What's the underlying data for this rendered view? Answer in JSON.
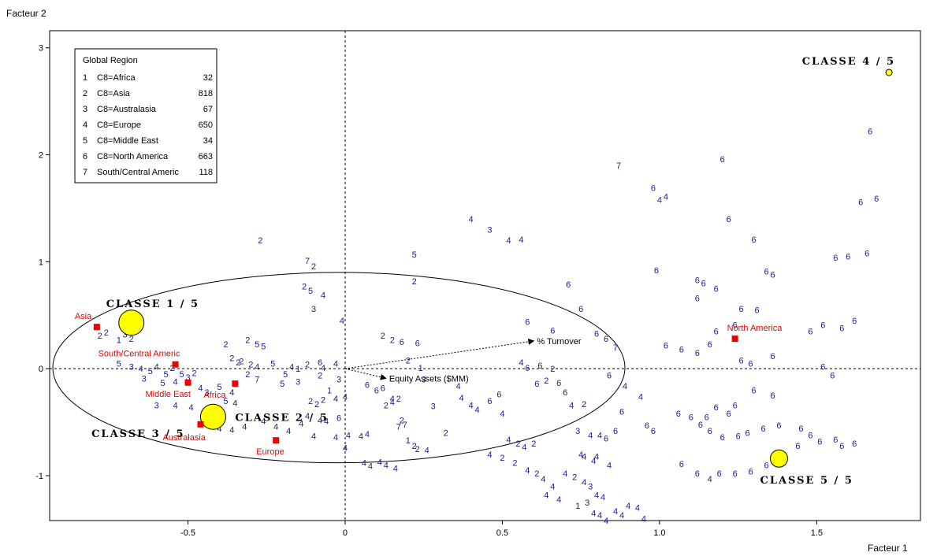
{
  "chart_data": {
    "type": "scatter",
    "xlabel": "Facteur 1",
    "ylabel": "Facteur 2",
    "xlim": [
      -0.94,
      1.83
    ],
    "ylim": [
      -1.42,
      3.16
    ],
    "xticks": [
      -0.5,
      0,
      0.5,
      1,
      1.5
    ],
    "xtick_labels": [
      "-0.5",
      "0",
      "0.5",
      "1.0",
      "1.5"
    ],
    "yticks": [
      -1,
      0,
      1,
      2,
      3
    ],
    "ytick_labels": [
      "-1",
      "0",
      "1",
      "2",
      "3"
    ],
    "reference_lines": {
      "x": 0,
      "y": 0,
      "style": "dotted"
    },
    "legend": {
      "title": "Global Region",
      "placement": "top-left",
      "entries": [
        {
          "code": "1",
          "label": "C8=Africa",
          "count": "32"
        },
        {
          "code": "2",
          "label": "C8=Asia",
          "count": "818"
        },
        {
          "code": "3",
          "label": "C8=Australasia",
          "count": "67"
        },
        {
          "code": "4",
          "label": "C8=Europe",
          "count": "650"
        },
        {
          "code": "5",
          "label": "C8=Middle East",
          "count": "34"
        },
        {
          "code": "6",
          "label": "C8=North America",
          "count": "663"
        },
        {
          "code": "7",
          "label": "South/Central Americ",
          "count": "118"
        }
      ]
    },
    "modality_points": [
      {
        "label": "Asia",
        "x": -0.79,
        "y": 0.39
      },
      {
        "label": "South/Central Americ",
        "x": -0.54,
        "y": 0.04
      },
      {
        "label": "Middle East",
        "x": -0.5,
        "y": -0.13
      },
      {
        "label": "Africa",
        "x": -0.35,
        "y": -0.14
      },
      {
        "label": "Australasia",
        "x": -0.46,
        "y": -0.52
      },
      {
        "label": "Europe",
        "x": -0.22,
        "y": -0.67
      },
      {
        "label": "North America",
        "x": 1.24,
        "y": 0.28
      }
    ],
    "class_centers": [
      {
        "label": "CLASSE  1 / 5",
        "x": -0.68,
        "y": 0.43,
        "size": "large"
      },
      {
        "label": "CLASSE  2 / 5",
        "x": -0.42,
        "y": -0.45,
        "size": "large"
      },
      {
        "label": "CLASSE  3 / 5",
        "x": -0.46,
        "y": -0.5,
        "size": "none"
      },
      {
        "label": "CLASSE  4 / 5",
        "x": 1.73,
        "y": 2.77,
        "size": "small"
      },
      {
        "label": "CLASSE  5 / 5",
        "x": 1.38,
        "y": -0.84,
        "size": "medium"
      }
    ],
    "variable_arrows": [
      {
        "label": "% Turnover",
        "x": 0.6,
        "y": 0.26
      },
      {
        "label": "Equity Assets ($MM)",
        "x": 0.13,
        "y": -0.09
      }
    ],
    "ellipse": {
      "cx": -0.02,
      "cy": 0.01,
      "rx": 0.91,
      "ry": 0.89
    },
    "points": [
      [
        -0.76,
        0.34,
        "2"
      ],
      [
        -0.7,
        0.32,
        "3"
      ],
      [
        -0.72,
        0.27,
        "1"
      ],
      [
        -0.78,
        0.31,
        "2"
      ],
      [
        -0.68,
        0.28,
        "2"
      ],
      [
        -0.72,
        0.05,
        "5"
      ],
      [
        -0.68,
        0.02,
        "3"
      ],
      [
        -0.65,
        0.0,
        "4"
      ],
      [
        -0.62,
        -0.02,
        "5"
      ],
      [
        -0.6,
        0.02,
        "4"
      ],
      [
        -0.57,
        -0.05,
        "5"
      ],
      [
        -0.55,
        0.01,
        "2"
      ],
      [
        -0.52,
        -0.05,
        "5"
      ],
      [
        -0.48,
        -0.04,
        "2"
      ],
      [
        -0.64,
        -0.09,
        "3"
      ],
      [
        -0.58,
        -0.13,
        "5"
      ],
      [
        -0.54,
        -0.12,
        "4"
      ],
      [
        -0.5,
        -0.08,
        "3"
      ],
      [
        -0.46,
        -0.18,
        "4"
      ],
      [
        -0.44,
        -0.22,
        "3"
      ],
      [
        -0.4,
        -0.17,
        "5"
      ],
      [
        -0.36,
        -0.22,
        "4"
      ],
      [
        -0.6,
        -0.34,
        "3"
      ],
      [
        -0.54,
        -0.34,
        "4"
      ],
      [
        -0.49,
        -0.36,
        "4"
      ],
      [
        -0.38,
        -0.3,
        "5"
      ],
      [
        -0.35,
        -0.32,
        "4"
      ],
      [
        -0.32,
        -0.54,
        "4"
      ],
      [
        -0.36,
        -0.57,
        "4"
      ],
      [
        -0.4,
        -0.56,
        "4"
      ],
      [
        -0.36,
        0.1,
        "2"
      ],
      [
        -0.33,
        0.07,
        "2"
      ],
      [
        -0.3,
        0.04,
        "2"
      ],
      [
        -0.28,
        0.02,
        "4"
      ],
      [
        -0.31,
        -0.05,
        "2"
      ],
      [
        -0.28,
        -0.1,
        "7"
      ],
      [
        -0.31,
        0.27,
        "2"
      ],
      [
        -0.28,
        0.23,
        "5"
      ],
      [
        -0.26,
        0.21,
        "5"
      ],
      [
        -0.23,
        0.05,
        "5"
      ],
      [
        -0.19,
        -0.05,
        "5"
      ],
      [
        -0.2,
        -0.14,
        "5"
      ],
      [
        -0.17,
        0.02,
        "4"
      ],
      [
        -0.15,
        0.0,
        "1"
      ],
      [
        -0.12,
        0.04,
        "2"
      ],
      [
        -0.08,
        0.06,
        "6"
      ],
      [
        -0.03,
        0.05,
        "4"
      ],
      [
        -0.07,
        0.01,
        "4"
      ],
      [
        -0.08,
        -0.06,
        "2"
      ],
      [
        -0.15,
        -0.12,
        "3"
      ],
      [
        -0.11,
        -0.3,
        "2"
      ],
      [
        -0.09,
        -0.33,
        "2"
      ],
      [
        -0.07,
        -0.29,
        "2"
      ],
      [
        -0.05,
        -0.2,
        "1"
      ],
      [
        -0.03,
        -0.28,
        "4"
      ],
      [
        0.0,
        -0.26,
        "4"
      ],
      [
        -0.12,
        -0.44,
        "4"
      ],
      [
        -0.08,
        -0.48,
        "4"
      ],
      [
        -0.06,
        -0.49,
        "4"
      ],
      [
        -0.02,
        -0.46,
        "6"
      ],
      [
        -0.26,
        -0.49,
        "4"
      ],
      [
        -0.22,
        -0.54,
        "4"
      ],
      [
        -0.18,
        -0.58,
        "4"
      ],
      [
        -0.14,
        -0.51,
        "4"
      ],
      [
        -0.1,
        -0.63,
        "4"
      ],
      [
        -0.03,
        -0.64,
        "4"
      ],
      [
        0.01,
        -0.62,
        "4"
      ],
      [
        0.05,
        -0.63,
        "4"
      ],
      [
        0.0,
        -0.74,
        "4"
      ],
      [
        0.07,
        -0.61,
        "4"
      ],
      [
        -0.02,
        -0.1,
        "3"
      ],
      [
        0.07,
        -0.15,
        "6"
      ],
      [
        0.1,
        -0.2,
        "6"
      ],
      [
        0.12,
        -0.18,
        "6"
      ],
      [
        0.15,
        -0.28,
        "4"
      ],
      [
        0.13,
        -0.34,
        "2"
      ],
      [
        0.15,
        -0.31,
        "4"
      ],
      [
        0.17,
        -0.28,
        "2"
      ],
      [
        0.18,
        -0.48,
        "2"
      ],
      [
        0.19,
        -0.52,
        "7"
      ],
      [
        0.17,
        -0.54,
        "7"
      ],
      [
        0.2,
        -0.67,
        "1"
      ],
      [
        0.22,
        -0.72,
        "2"
      ],
      [
        0.23,
        -0.75,
        "2"
      ],
      [
        0.26,
        -0.76,
        "4"
      ],
      [
        0.06,
        -0.88,
        "4"
      ],
      [
        0.08,
        -0.91,
        "4"
      ],
      [
        0.11,
        -0.87,
        "4"
      ],
      [
        0.13,
        -0.9,
        "4"
      ],
      [
        0.16,
        -0.93,
        "4"
      ],
      [
        0.12,
        0.31,
        "2"
      ],
      [
        0.15,
        0.27,
        "2"
      ],
      [
        0.18,
        0.25,
        "6"
      ],
      [
        0.23,
        0.24,
        "6"
      ],
      [
        0.2,
        0.08,
        "2"
      ],
      [
        0.24,
        0.01,
        "1"
      ],
      [
        0.25,
        -0.1,
        "3"
      ],
      [
        0.28,
        -0.35,
        "3"
      ],
      [
        0.32,
        -0.6,
        "2"
      ],
      [
        0.36,
        -0.16,
        "4"
      ],
      [
        0.37,
        -0.27,
        "4"
      ],
      [
        0.4,
        -0.34,
        "4"
      ],
      [
        0.42,
        -0.38,
        "4"
      ],
      [
        0.46,
        -0.3,
        "6"
      ],
      [
        0.49,
        -0.24,
        "6"
      ],
      [
        0.5,
        -0.42,
        "4"
      ],
      [
        0.52,
        -0.66,
        "4"
      ],
      [
        0.55,
        -0.7,
        "2"
      ],
      [
        0.57,
        -0.73,
        "4"
      ],
      [
        0.6,
        -0.7,
        "2"
      ],
      [
        0.56,
        0.06,
        "4"
      ],
      [
        0.58,
        0.01,
        "6"
      ],
      [
        0.62,
        0.03,
        "6"
      ],
      [
        0.66,
        0.0,
        "2"
      ],
      [
        0.61,
        -0.14,
        "6"
      ],
      [
        0.64,
        -0.11,
        "2"
      ],
      [
        0.68,
        -0.13,
        "6"
      ],
      [
        0.7,
        -0.22,
        "6"
      ],
      [
        0.72,
        -0.34,
        "4"
      ],
      [
        0.76,
        -0.33,
        "2"
      ],
      [
        0.74,
        -0.58,
        "3"
      ],
      [
        0.78,
        -0.62,
        "4"
      ],
      [
        0.81,
        -0.62,
        "4"
      ],
      [
        0.83,
        -0.65,
        "6"
      ],
      [
        0.86,
        -0.58,
        "6"
      ],
      [
        0.75,
        -0.8,
        "4"
      ],
      [
        0.76,
        -0.82,
        "4"
      ],
      [
        0.79,
        -0.86,
        "4"
      ],
      [
        0.8,
        -0.82,
        "4"
      ],
      [
        0.84,
        -0.9,
        "4"
      ],
      [
        0.73,
        -1.01,
        "2"
      ],
      [
        0.76,
        -1.06,
        "4"
      ],
      [
        0.78,
        -1.1,
        "3"
      ],
      [
        0.8,
        -1.18,
        "4"
      ],
      [
        0.82,
        -1.2,
        "4"
      ],
      [
        0.79,
        -1.35,
        "4"
      ],
      [
        0.81,
        -1.37,
        "4"
      ],
      [
        0.83,
        -1.42,
        "4"
      ],
      [
        0.86,
        -1.33,
        "4"
      ],
      [
        0.88,
        -1.37,
        "4"
      ],
      [
        0.9,
        -1.28,
        "4"
      ],
      [
        0.93,
        -1.3,
        "4"
      ],
      [
        0.95,
        -1.4,
        "4"
      ],
      [
        0.74,
        -1.28,
        "1"
      ],
      [
        0.77,
        -1.25,
        "3"
      ],
      [
        0.46,
        -0.8,
        "4"
      ],
      [
        0.5,
        -0.83,
        "2"
      ],
      [
        0.54,
        -0.88,
        "2"
      ],
      [
        0.58,
        -0.95,
        "4"
      ],
      [
        0.61,
        -0.98,
        "2"
      ],
      [
        0.63,
        -1.03,
        "4"
      ],
      [
        0.66,
        -1.1,
        "4"
      ],
      [
        0.7,
        -0.98,
        "4"
      ],
      [
        0.64,
        -1.18,
        "4"
      ],
      [
        0.68,
        -1.22,
        "4"
      ],
      [
        0.75,
        0.56,
        "6"
      ],
      [
        0.8,
        0.33,
        "6"
      ],
      [
        0.83,
        0.28,
        "6"
      ],
      [
        0.86,
        0.2,
        "7"
      ],
      [
        0.84,
        -0.06,
        "6"
      ],
      [
        0.89,
        -0.16,
        "4"
      ],
      [
        0.94,
        -0.26,
        "4"
      ],
      [
        0.88,
        -0.4,
        "6"
      ],
      [
        0.96,
        -0.53,
        "6"
      ],
      [
        0.98,
        -0.58,
        "6"
      ],
      [
        0.66,
        0.36,
        "6"
      ],
      [
        0.58,
        0.44,
        "6"
      ],
      [
        0.71,
        0.79,
        "6"
      ],
      [
        0.4,
        1.4,
        "4"
      ],
      [
        0.46,
        1.3,
        "3"
      ],
      [
        0.52,
        1.2,
        "4"
      ],
      [
        0.56,
        1.21,
        "4"
      ],
      [
        0.87,
        1.9,
        "7"
      ],
      [
        0.98,
        1.69,
        "6"
      ],
      [
        1.02,
        1.61,
        "4"
      ],
      [
        1.0,
        1.58,
        "4"
      ],
      [
        0.99,
        0.92,
        "6"
      ],
      [
        1.2,
        1.96,
        "6"
      ],
      [
        1.22,
        1.4,
        "6"
      ],
      [
        1.3,
        1.21,
        "6"
      ],
      [
        1.34,
        0.91,
        "6"
      ],
      [
        1.36,
        0.88,
        "6"
      ],
      [
        1.12,
        0.83,
        "6"
      ],
      [
        1.14,
        0.8,
        "6"
      ],
      [
        1.18,
        0.75,
        "6"
      ],
      [
        1.12,
        0.66,
        "6"
      ],
      [
        1.26,
        0.56,
        "6"
      ],
      [
        1.31,
        0.55,
        "6"
      ],
      [
        1.18,
        0.35,
        "6"
      ],
      [
        1.24,
        0.41,
        "6"
      ],
      [
        1.02,
        0.22,
        "6"
      ],
      [
        1.07,
        0.18,
        "6"
      ],
      [
        1.12,
        0.15,
        "6"
      ],
      [
        1.16,
        0.23,
        "6"
      ],
      [
        1.26,
        0.08,
        "6"
      ],
      [
        1.29,
        0.05,
        "6"
      ],
      [
        1.36,
        0.12,
        "6"
      ],
      [
        1.3,
        -0.2,
        "6"
      ],
      [
        1.36,
        -0.25,
        "6"
      ],
      [
        1.24,
        -0.34,
        "6"
      ],
      [
        1.18,
        -0.36,
        "6"
      ],
      [
        1.06,
        -0.42,
        "6"
      ],
      [
        1.1,
        -0.45,
        "6"
      ],
      [
        1.15,
        -0.45,
        "6"
      ],
      [
        1.22,
        -0.42,
        "6"
      ],
      [
        1.13,
        -0.52,
        "6"
      ],
      [
        1.16,
        -0.58,
        "6"
      ],
      [
        1.2,
        -0.64,
        "6"
      ],
      [
        1.25,
        -0.63,
        "6"
      ],
      [
        1.28,
        -0.6,
        "6"
      ],
      [
        1.33,
        -0.56,
        "6"
      ],
      [
        1.38,
        -0.53,
        "6"
      ],
      [
        1.45,
        -0.56,
        "6"
      ],
      [
        1.48,
        -0.62,
        "6"
      ],
      [
        1.51,
        -0.68,
        "6"
      ],
      [
        1.56,
        -0.66,
        "6"
      ],
      [
        1.58,
        -0.72,
        "6"
      ],
      [
        1.62,
        -0.7,
        "6"
      ],
      [
        1.44,
        -0.72,
        "6"
      ],
      [
        1.34,
        -0.9,
        "6"
      ],
      [
        1.29,
        -0.96,
        "6"
      ],
      [
        1.24,
        -0.98,
        "6"
      ],
      [
        1.19,
        -0.98,
        "6"
      ],
      [
        1.12,
        -0.98,
        "6"
      ],
      [
        1.16,
        -1.03,
        "4"
      ],
      [
        1.07,
        -0.89,
        "6"
      ],
      [
        1.52,
        0.02,
        "6"
      ],
      [
        1.55,
        -0.06,
        "6"
      ],
      [
        1.48,
        0.35,
        "6"
      ],
      [
        1.52,
        0.41,
        "6"
      ],
      [
        1.58,
        0.38,
        "6"
      ],
      [
        1.62,
        0.45,
        "6"
      ],
      [
        1.56,
        1.04,
        "6"
      ],
      [
        1.6,
        1.05,
        "6"
      ],
      [
        1.66,
        1.08,
        "6"
      ],
      [
        1.64,
        1.56,
        "6"
      ],
      [
        1.69,
        1.59,
        "6"
      ],
      [
        1.67,
        2.22,
        "6"
      ],
      [
        -0.27,
        1.2,
        "2"
      ],
      [
        -0.12,
        1.01,
        "7"
      ],
      [
        -0.1,
        0.96,
        "2"
      ],
      [
        -0.13,
        0.77,
        "2"
      ],
      [
        -0.11,
        0.73,
        "5"
      ],
      [
        -0.07,
        0.69,
        "4"
      ],
      [
        -0.1,
        0.56,
        "3"
      ],
      [
        0.22,
        1.07,
        "5"
      ],
      [
        0.22,
        0.82,
        "2"
      ],
      [
        -0.01,
        0.45,
        "4"
      ],
      [
        -0.34,
        0.06,
        "2"
      ],
      [
        -0.38,
        0.23,
        "2"
      ]
    ]
  }
}
